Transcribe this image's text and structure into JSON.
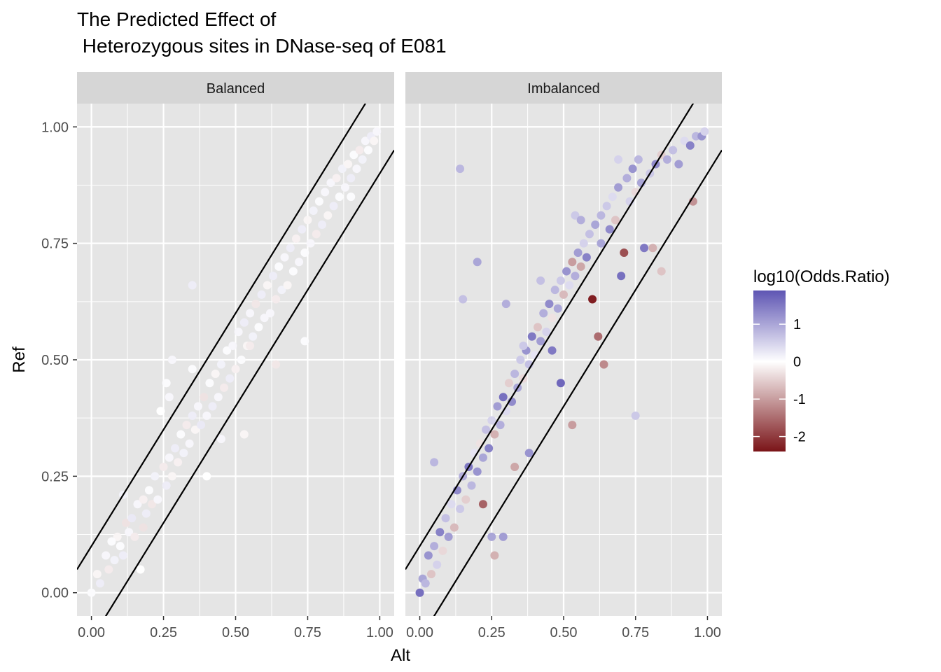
{
  "chart_data": {
    "type": "scatter",
    "title_lines": [
      "The Predicted Effect of",
      " Heterozygous sites in DNase-seq of E081"
    ],
    "xlabel": "Alt",
    "ylabel": "Ref",
    "xlim": [
      -0.05,
      1.05
    ],
    "ylim": [
      -0.05,
      1.05
    ],
    "x_ticks": [
      "0.00",
      "0.25",
      "0.50",
      "0.75",
      "1.00"
    ],
    "x_tick_values": [
      0,
      0.25,
      0.5,
      0.75,
      1
    ],
    "y_ticks": [
      "0.00",
      "0.25",
      "0.50",
      "0.75",
      "1.00"
    ],
    "y_tick_values": [
      0,
      0.25,
      0.5,
      0.75,
      1
    ],
    "grid": true,
    "facets": [
      {
        "label": "Balanced",
        "reference_lines": [
          {
            "intercept": 0.1,
            "slope": 1
          },
          {
            "intercept": -0.1,
            "slope": 1
          }
        ],
        "points": [
          [
            0.0,
            0.0,
            0.05
          ],
          [
            0.02,
            0.04,
            -0.1
          ],
          [
            0.03,
            0.02,
            0.2
          ],
          [
            0.05,
            0.08,
            0.1
          ],
          [
            0.06,
            0.05,
            -0.2
          ],
          [
            0.08,
            0.07,
            0.15
          ],
          [
            0.09,
            0.12,
            -0.1
          ],
          [
            0.1,
            0.1,
            0.05
          ],
          [
            0.11,
            0.08,
            0.2
          ],
          [
            0.12,
            0.15,
            -0.3
          ],
          [
            0.13,
            0.13,
            0.1
          ],
          [
            0.14,
            0.16,
            0.25
          ],
          [
            0.15,
            0.12,
            -0.2
          ],
          [
            0.16,
            0.19,
            0.1
          ],
          [
            0.17,
            0.05,
            0.0
          ],
          [
            0.18,
            0.2,
            -0.15
          ],
          [
            0.19,
            0.17,
            0.2
          ],
          [
            0.2,
            0.22,
            0.05
          ],
          [
            0.21,
            0.19,
            -0.25
          ],
          [
            0.22,
            0.25,
            0.15
          ],
          [
            0.23,
            0.2,
            0.1
          ],
          [
            0.24,
            0.39,
            0.0
          ],
          [
            0.25,
            0.27,
            -0.2
          ],
          [
            0.26,
            0.23,
            0.2
          ],
          [
            0.26,
            0.45,
            0.05
          ],
          [
            0.27,
            0.29,
            0.1
          ],
          [
            0.28,
            0.25,
            -0.1
          ],
          [
            0.28,
            0.5,
            0.1
          ],
          [
            0.29,
            0.31,
            0.2
          ],
          [
            0.3,
            0.28,
            -0.15
          ],
          [
            0.31,
            0.34,
            0.05
          ],
          [
            0.32,
            0.3,
            0.15
          ],
          [
            0.33,
            0.36,
            -0.2
          ],
          [
            0.34,
            0.32,
            0.1
          ],
          [
            0.35,
            0.38,
            0.2
          ],
          [
            0.35,
            0.48,
            0.05
          ],
          [
            0.36,
            0.35,
            -0.1
          ],
          [
            0.37,
            0.4,
            0.1
          ],
          [
            0.38,
            0.36,
            0.25
          ],
          [
            0.39,
            0.42,
            -0.3
          ],
          [
            0.4,
            0.38,
            0.1
          ],
          [
            0.41,
            0.45,
            0.05
          ],
          [
            0.42,
            0.4,
            0.2
          ],
          [
            0.43,
            0.47,
            -0.1
          ],
          [
            0.44,
            0.42,
            0.1
          ],
          [
            0.45,
            0.49,
            0.15
          ],
          [
            0.46,
            0.44,
            -0.2
          ],
          [
            0.47,
            0.52,
            0.05
          ],
          [
            0.48,
            0.46,
            0.2
          ],
          [
            0.49,
            0.53,
            0.1
          ],
          [
            0.5,
            0.48,
            -0.15
          ],
          [
            0.51,
            0.56,
            0.1
          ],
          [
            0.52,
            0.5,
            0.05
          ],
          [
            0.53,
            0.58,
            0.2
          ],
          [
            0.54,
            0.53,
            -0.1
          ],
          [
            0.55,
            0.6,
            0.1
          ],
          [
            0.56,
            0.55,
            0.15
          ],
          [
            0.57,
            0.62,
            -0.25
          ],
          [
            0.58,
            0.57,
            0.05
          ],
          [
            0.59,
            0.64,
            0.2
          ],
          [
            0.6,
            0.59,
            0.1
          ],
          [
            0.61,
            0.66,
            -0.1
          ],
          [
            0.62,
            0.6,
            0.1
          ],
          [
            0.63,
            0.68,
            0.2
          ],
          [
            0.64,
            0.63,
            -0.2
          ],
          [
            0.65,
            0.7,
            0.05
          ],
          [
            0.66,
            0.65,
            0.15
          ],
          [
            0.67,
            0.72,
            0.1
          ],
          [
            0.68,
            0.66,
            -0.1
          ],
          [
            0.69,
            0.74,
            0.2
          ],
          [
            0.7,
            0.69,
            0.05
          ],
          [
            0.71,
            0.76,
            -0.15
          ],
          [
            0.72,
            0.71,
            0.1
          ],
          [
            0.73,
            0.78,
            0.2
          ],
          [
            0.74,
            0.73,
            0.05
          ],
          [
            0.75,
            0.8,
            -0.1
          ],
          [
            0.76,
            0.75,
            0.1
          ],
          [
            0.77,
            0.82,
            0.15
          ],
          [
            0.78,
            0.77,
            -0.2
          ],
          [
            0.79,
            0.84,
            0.05
          ],
          [
            0.8,
            0.79,
            0.2
          ],
          [
            0.81,
            0.86,
            0.1
          ],
          [
            0.82,
            0.81,
            -0.1
          ],
          [
            0.83,
            0.88,
            0.1
          ],
          [
            0.84,
            0.83,
            0.2
          ],
          [
            0.85,
            0.89,
            -0.15
          ],
          [
            0.86,
            0.85,
            0.05
          ],
          [
            0.87,
            0.91,
            0.15
          ],
          [
            0.88,
            0.87,
            0.1
          ],
          [
            0.89,
            0.92,
            -0.1
          ],
          [
            0.9,
            0.89,
            0.2
          ],
          [
            0.91,
            0.94,
            0.05
          ],
          [
            0.92,
            0.91,
            0.1
          ],
          [
            0.93,
            0.95,
            -0.2
          ],
          [
            0.94,
            0.93,
            0.15
          ],
          [
            0.95,
            0.97,
            0.1
          ],
          [
            0.96,
            0.95,
            0.05
          ],
          [
            0.97,
            0.98,
            0.2
          ],
          [
            0.98,
            0.97,
            -0.1
          ],
          [
            0.99,
            0.99,
            0.1
          ],
          [
            0.9,
            0.85,
            0.05
          ],
          [
            0.35,
            0.66,
            0.2
          ],
          [
            0.55,
            0.53,
            -0.2
          ],
          [
            0.74,
            0.54,
            0.05
          ],
          [
            0.64,
            0.49,
            -0.25
          ],
          [
            0.4,
            0.25,
            0.0
          ],
          [
            0.45,
            0.33,
            0.1
          ],
          [
            0.53,
            0.34,
            -0.1
          ],
          [
            0.27,
            0.42,
            0.1
          ],
          [
            0.11,
            0.21,
            0.15
          ],
          [
            0.18,
            0.14,
            -0.3
          ],
          [
            0.07,
            0.11,
            0.05
          ]
        ]
      },
      {
        "label": "Imbalanced",
        "reference_lines": [
          {
            "intercept": 0.1,
            "slope": 1
          },
          {
            "intercept": -0.1,
            "slope": 1
          }
        ],
        "points": [
          [
            0.0,
            0.0,
            1.6
          ],
          [
            0.01,
            0.03,
            1.0
          ],
          [
            0.02,
            0.02,
            0.8
          ],
          [
            0.03,
            0.08,
            1.2
          ],
          [
            0.04,
            0.04,
            -0.6
          ],
          [
            0.05,
            0.1,
            0.9
          ],
          [
            0.06,
            0.06,
            0.5
          ],
          [
            0.07,
            0.13,
            1.4
          ],
          [
            0.08,
            0.09,
            -0.4
          ],
          [
            0.09,
            0.16,
            0.7
          ],
          [
            0.1,
            0.12,
            1.1
          ],
          [
            0.11,
            0.19,
            0.4
          ],
          [
            0.12,
            0.14,
            -0.7
          ],
          [
            0.13,
            0.22,
            1.3
          ],
          [
            0.14,
            0.18,
            0.6
          ],
          [
            0.15,
            0.25,
            0.9
          ],
          [
            0.16,
            0.2,
            -0.5
          ],
          [
            0.17,
            0.27,
            1.5
          ],
          [
            0.18,
            0.23,
            0.8
          ],
          [
            0.19,
            0.3,
            0.3
          ],
          [
            0.2,
            0.26,
            1.2
          ],
          [
            0.21,
            0.32,
            -0.3
          ],
          [
            0.22,
            0.29,
            1.0
          ],
          [
            0.23,
            0.35,
            0.7
          ],
          [
            0.24,
            0.31,
            1.4
          ],
          [
            0.25,
            0.37,
            0.5
          ],
          [
            0.26,
            0.34,
            -0.8
          ],
          [
            0.27,
            0.4,
            1.1
          ],
          [
            0.28,
            0.36,
            0.9
          ],
          [
            0.29,
            0.42,
            1.6
          ],
          [
            0.3,
            0.39,
            0.4
          ],
          [
            0.31,
            0.45,
            -0.5
          ],
          [
            0.32,
            0.41,
            1.3
          ],
          [
            0.33,
            0.47,
            0.8
          ],
          [
            0.34,
            0.44,
            1.0
          ],
          [
            0.35,
            0.5,
            0.6
          ],
          [
            0.36,
            0.46,
            -0.4
          ],
          [
            0.37,
            0.52,
            1.2
          ],
          [
            0.38,
            0.49,
            0.7
          ],
          [
            0.39,
            0.55,
            1.5
          ],
          [
            0.4,
            0.51,
            0.3
          ],
          [
            0.41,
            0.57,
            -0.6
          ],
          [
            0.42,
            0.54,
            1.1
          ],
          [
            0.43,
            0.6,
            0.9
          ],
          [
            0.44,
            0.56,
            0.5
          ],
          [
            0.45,
            0.62,
            1.3
          ],
          [
            0.46,
            0.59,
            -0.3
          ],
          [
            0.47,
            0.65,
            0.8
          ],
          [
            0.48,
            0.61,
            1.0
          ],
          [
            0.49,
            0.67,
            0.6
          ],
          [
            0.5,
            0.64,
            -0.7
          ],
          [
            0.51,
            0.69,
            1.2
          ],
          [
            0.52,
            0.66,
            0.4
          ],
          [
            0.53,
            0.71,
            -1.0
          ],
          [
            0.54,
            0.68,
            0.9
          ],
          [
            0.55,
            0.73,
            1.1
          ],
          [
            0.56,
            0.7,
            -0.9
          ],
          [
            0.57,
            0.75,
            0.5
          ],
          [
            0.58,
            0.72,
            1.4
          ],
          [
            0.59,
            0.77,
            0.7
          ],
          [
            0.6,
            0.63,
            -2.3
          ],
          [
            0.61,
            0.79,
            1.0
          ],
          [
            0.62,
            0.55,
            -1.5
          ],
          [
            0.63,
            0.81,
            0.8
          ],
          [
            0.64,
            0.49,
            -1.2
          ],
          [
            0.65,
            0.83,
            0.6
          ],
          [
            0.66,
            0.78,
            1.3
          ],
          [
            0.67,
            0.85,
            0.4
          ],
          [
            0.68,
            0.8,
            -0.6
          ],
          [
            0.69,
            0.87,
            1.1
          ],
          [
            0.7,
            0.68,
            1.6
          ],
          [
            0.71,
            0.73,
            -1.8
          ],
          [
            0.72,
            0.89,
            0.9
          ],
          [
            0.73,
            0.84,
            0.5
          ],
          [
            0.74,
            0.91,
            1.2
          ],
          [
            0.75,
            0.86,
            -0.4
          ],
          [
            0.76,
            0.93,
            0.8
          ],
          [
            0.77,
            0.88,
            1.0
          ],
          [
            0.78,
            0.74,
            1.5
          ],
          [
            0.8,
            0.9,
            0.6
          ],
          [
            0.82,
            0.92,
            1.3
          ],
          [
            0.84,
            0.94,
            -0.5
          ],
          [
            0.86,
            0.93,
            0.9
          ],
          [
            0.88,
            0.95,
            0.7
          ],
          [
            0.9,
            0.92,
            1.1
          ],
          [
            0.92,
            0.97,
            0.4
          ],
          [
            0.94,
            0.96,
            1.4
          ],
          [
            0.96,
            0.98,
            0.8
          ],
          [
            0.98,
            0.98,
            1.2
          ],
          [
            0.99,
            0.99,
            0.5
          ],
          [
            0.14,
            0.91,
            0.8
          ],
          [
            0.2,
            0.71,
            1.0
          ],
          [
            0.15,
            0.63,
            0.7
          ],
          [
            0.3,
            0.62,
            0.9
          ],
          [
            0.05,
            0.28,
            0.8
          ],
          [
            0.26,
            0.08,
            -0.8
          ],
          [
            0.29,
            0.12,
            1.1
          ],
          [
            0.25,
            0.12,
            1.0
          ],
          [
            0.22,
            0.19,
            -1.6
          ],
          [
            0.46,
            0.52,
            1.5
          ],
          [
            0.49,
            0.45,
            1.7
          ],
          [
            0.53,
            0.36,
            -1.0
          ],
          [
            0.38,
            0.3,
            1.2
          ],
          [
            0.33,
            0.27,
            -0.9
          ],
          [
            0.69,
            0.93,
            0.5
          ],
          [
            0.54,
            0.81,
            0.6
          ],
          [
            0.56,
            0.8,
            0.9
          ],
          [
            0.42,
            0.67,
            0.7
          ],
          [
            0.75,
            0.38,
            0.6
          ],
          [
            0.84,
            0.69,
            -0.6
          ],
          [
            0.95,
            0.84,
            -1.1
          ],
          [
            0.81,
            0.74,
            -0.8
          ],
          [
            0.63,
            0.75,
            1.0
          ],
          [
            0.36,
            0.53,
            0.6
          ]
        ]
      }
    ],
    "legend": {
      "title": "log10(Odds.Ratio)",
      "placement": "right",
      "range": [
        -2.4,
        1.9
      ],
      "breaks": [
        1,
        0,
        -1,
        -2
      ],
      "break_labels": [
        "1",
        "0",
        "-1",
        "-2"
      ],
      "colors": {
        "high": "#5e55b3",
        "mid": "#ffffff",
        "low": "#7a1418"
      }
    },
    "colors": {
      "panel_bg": "#e5e5e5",
      "grid": "#ffffff",
      "strip_bg": "#d6d6d6",
      "reference_line": "#000000"
    }
  }
}
